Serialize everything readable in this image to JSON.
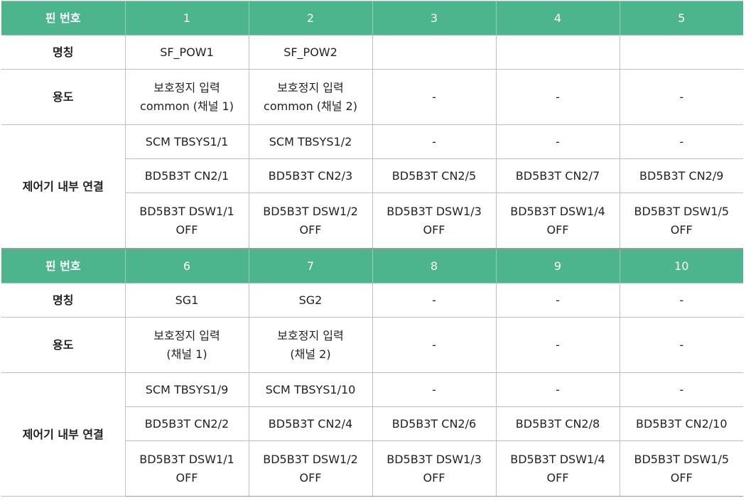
{
  "labels": {
    "pin_number": "핀 번호",
    "name": "명칭",
    "usage": "용도",
    "connection": "제어기 내부 연결"
  },
  "block1": {
    "pins": [
      "1",
      "2",
      "3",
      "4",
      "5"
    ],
    "names": [
      "SF_POW1",
      "SF_POW2",
      "",
      "",
      ""
    ],
    "usage": [
      [
        "보호정지 입력",
        "common (채널 1)"
      ],
      [
        "보호정지 입력",
        "common (채널 2)"
      ],
      [
        "-",
        ""
      ],
      [
        "-",
        ""
      ],
      [
        "-",
        ""
      ]
    ],
    "conn_row1": [
      "SCM TBSYS1/1",
      "SCM TBSYS1/2",
      "-",
      "-",
      "-"
    ],
    "conn_row2": [
      "BD5B3T CN2/1",
      "BD5B3T CN2/3",
      "BD5B3T CN2/5",
      "BD5B3T CN2/7",
      "BD5B3T CN2/9"
    ],
    "conn_row3": [
      [
        "BD5B3T DSW1/1",
        "OFF"
      ],
      [
        "BD5B3T DSW1/2",
        "OFF"
      ],
      [
        "BD5B3T DSW1/3",
        "OFF"
      ],
      [
        "BD5B3T DSW1/4",
        "OFF"
      ],
      [
        "BD5B3T DSW1/5",
        "OFF"
      ]
    ]
  },
  "block2": {
    "pins": [
      "6",
      "7",
      "8",
      "9",
      "10"
    ],
    "names": [
      "SG1",
      "SG2",
      "-",
      "-",
      "-"
    ],
    "usage": [
      [
        "보호정지 입력",
        "(채널 1)"
      ],
      [
        "보호정지 입력",
        "(채널 2)"
      ],
      [
        "-",
        ""
      ],
      [
        "-",
        ""
      ],
      [
        "-",
        ""
      ]
    ],
    "conn_row1": [
      "SCM TBSYS1/9",
      "SCM TBSYS1/10",
      "-",
      "-",
      "-"
    ],
    "conn_row2": [
      "BD5B3T CN2/2",
      "BD5B3T CN2/4",
      "BD5B3T CN2/6",
      "BD5B3T CN2/8",
      "BD5B3T CN2/10"
    ],
    "conn_row3": [
      [
        "BD5B3T DSW1/1",
        "OFF"
      ],
      [
        "BD5B3T DSW1/2",
        "OFF"
      ],
      [
        "BD5B3T DSW1/3",
        "OFF"
      ],
      [
        "BD5B3T DSW1/4",
        "OFF"
      ],
      [
        "BD5B3T DSW1/5",
        "OFF"
      ]
    ]
  },
  "colors": {
    "header_bg": "#4db58d",
    "header_text": "#ffffff",
    "border": "#bfbfbf"
  }
}
